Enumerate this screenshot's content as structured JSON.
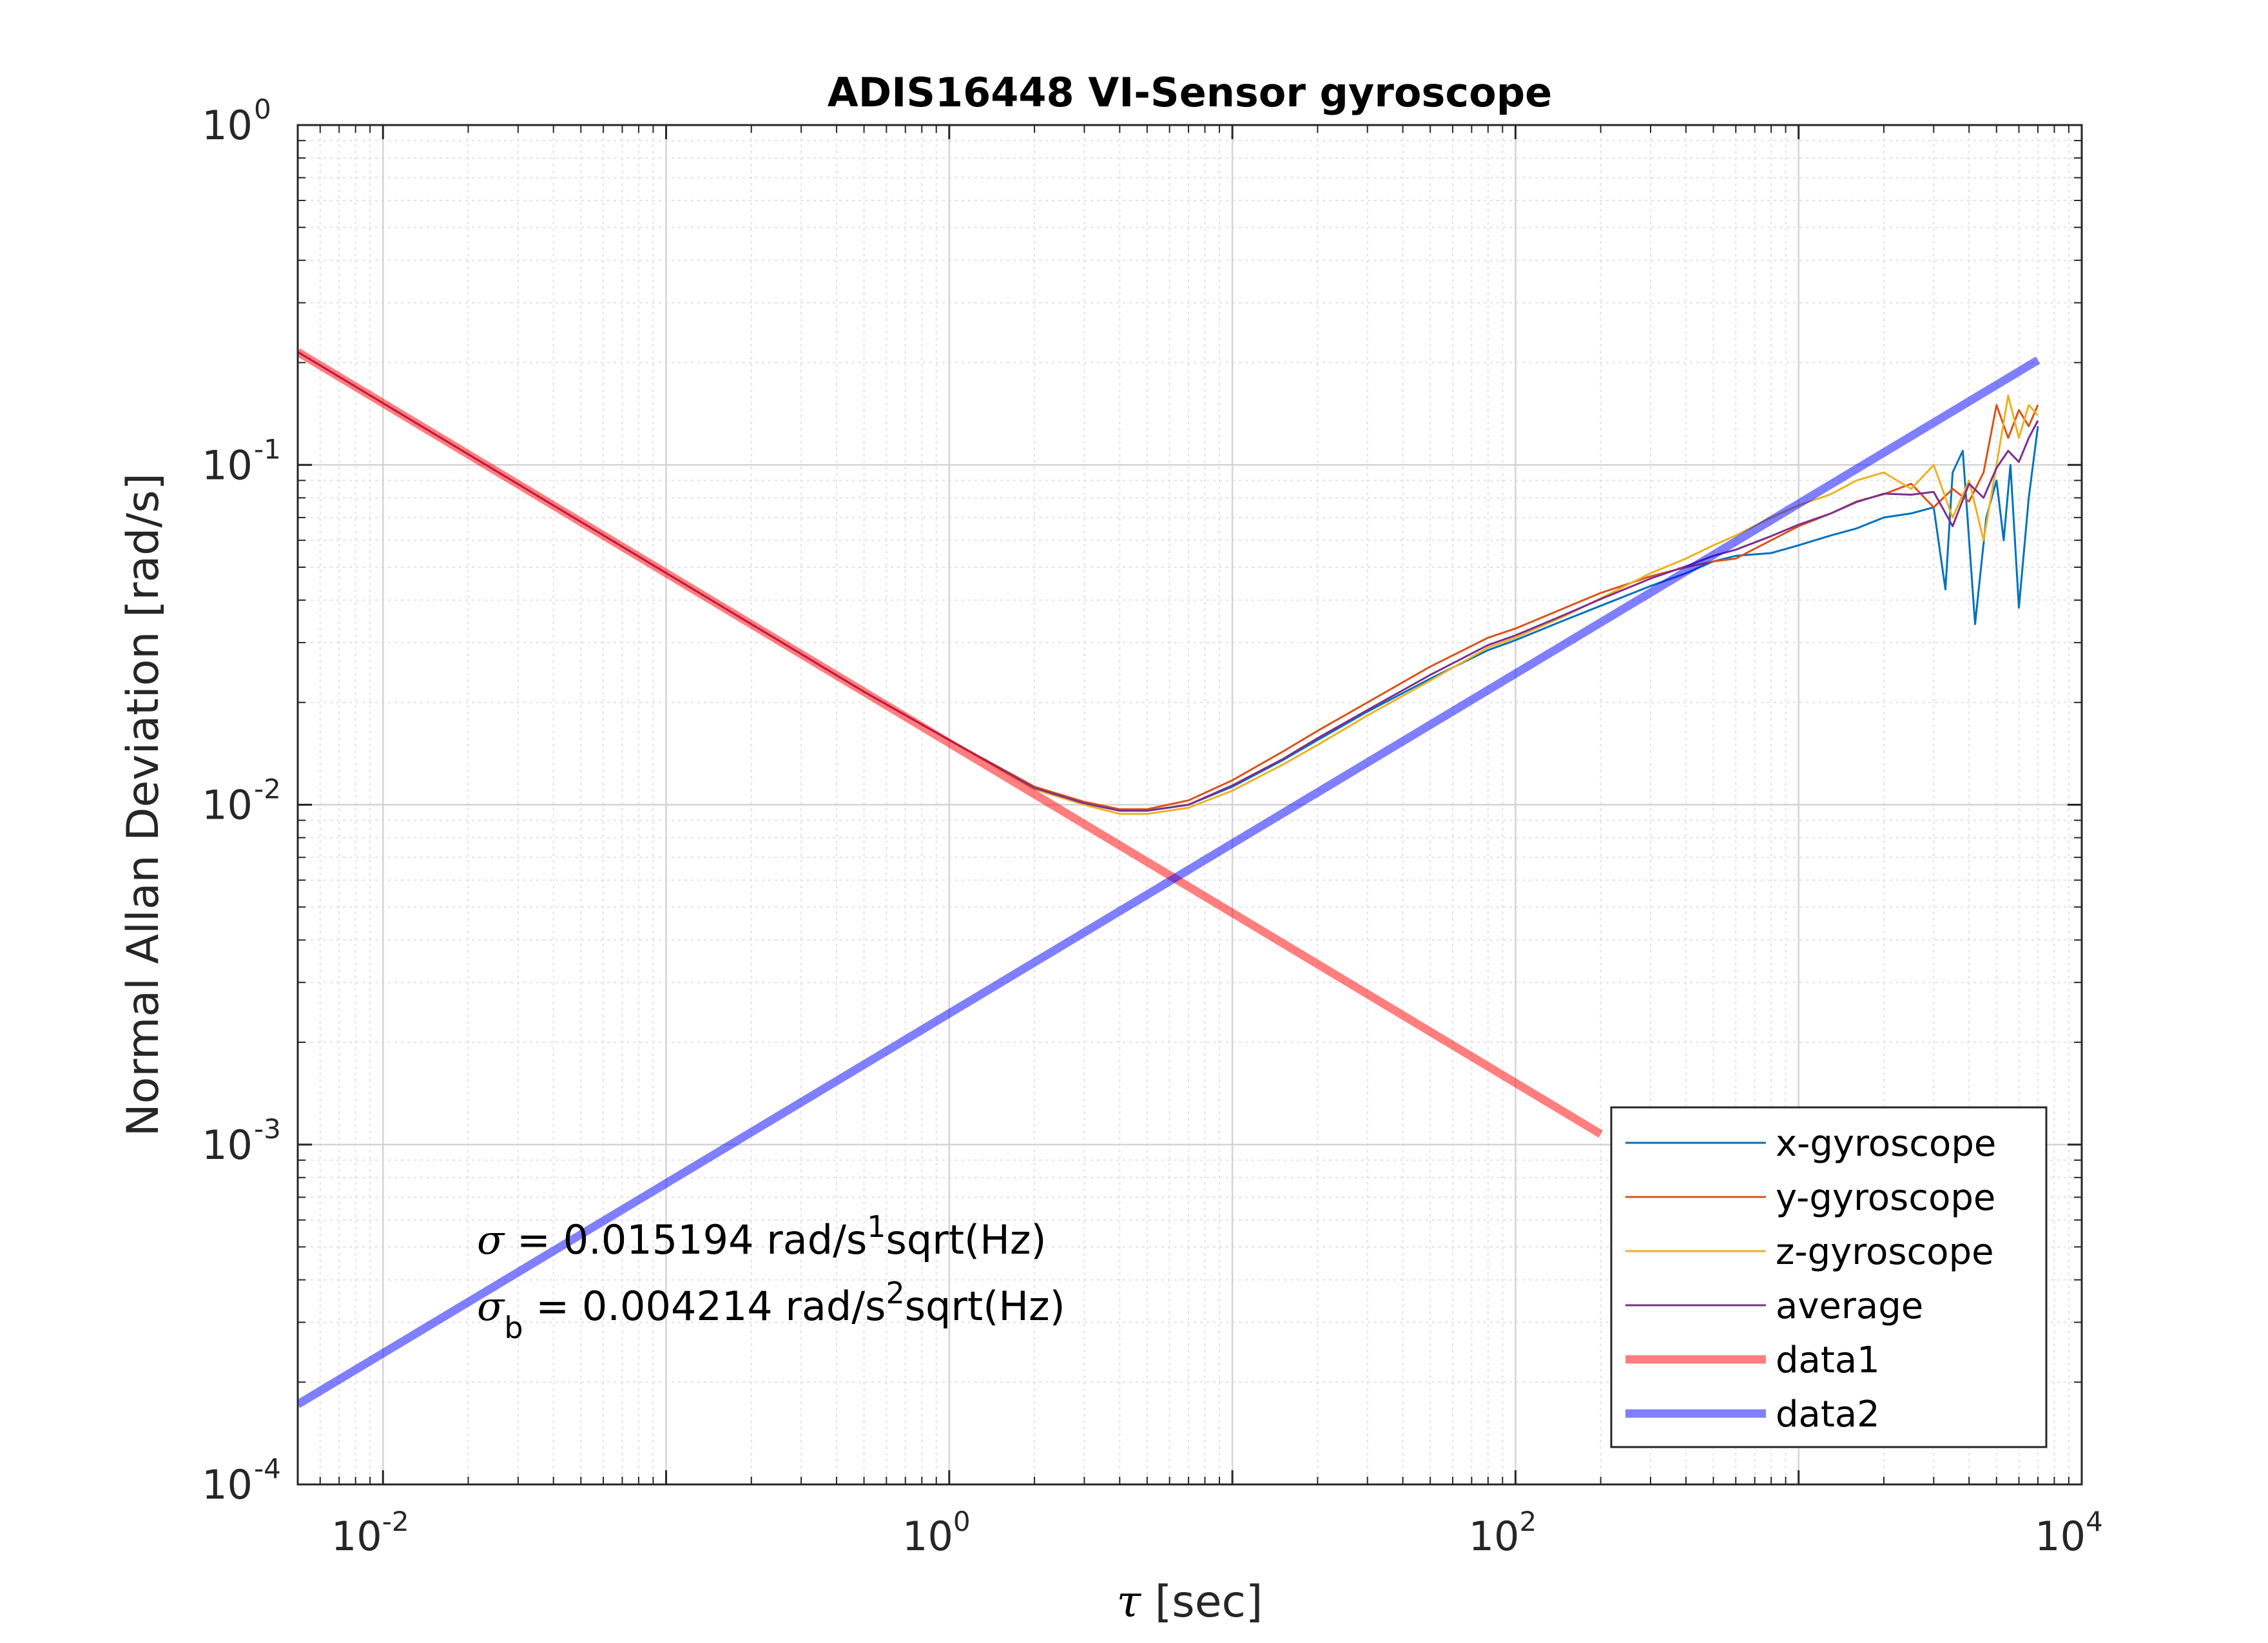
{
  "chart_data": {
    "type": "line",
    "title": "ADIS16448 VI-Sensor gyroscope",
    "xlabel_symbol": "τ",
    "xlabel_text": " [sec]",
    "ylabel": "Normal Allan Deviation [rad/s]",
    "xscale": "log",
    "yscale": "log",
    "xlim": [
      0.005,
      10000
    ],
    "ylim": [
      0.0001,
      1
    ],
    "grid": true,
    "x_ticks": [
      {
        "base": "10",
        "exp": "-2",
        "value": 0.01
      },
      {
        "base": "10",
        "exp": "0",
        "value": 1
      },
      {
        "base": "10",
        "exp": "2",
        "value": 100
      },
      {
        "base": "10",
        "exp": "4",
        "value": 10000
      }
    ],
    "y_ticks": [
      {
        "base": "10",
        "exp": "-4",
        "value": 0.0001
      },
      {
        "base": "10",
        "exp": "-3",
        "value": 0.001
      },
      {
        "base": "10",
        "exp": "-2",
        "value": 0.01
      },
      {
        "base": "10",
        "exp": "-1",
        "value": 0.1
      },
      {
        "base": "10",
        "exp": "0",
        "value": 1
      }
    ],
    "legend_position": "bottom-right",
    "series": [
      {
        "name": "x-gyroscope",
        "color": "#0072BD",
        "width": 3,
        "x": [
          0.005,
          0.01,
          0.05,
          0.2,
          0.5,
          1,
          2,
          3,
          4,
          5,
          7,
          10,
          15,
          20,
          30,
          50,
          80,
          100,
          150,
          200,
          300,
          400,
          500,
          600,
          800,
          1000,
          1300,
          1600,
          2000,
          2500,
          3000,
          3300,
          3500,
          3800,
          4200,
          4600,
          5000,
          5300,
          5600,
          6000,
          6500,
          7000
        ],
        "y": [
          0.215,
          0.152,
          0.068,
          0.034,
          0.0215,
          0.0155,
          0.0112,
          0.0101,
          0.0096,
          0.0096,
          0.01,
          0.0113,
          0.0135,
          0.0155,
          0.0188,
          0.0235,
          0.0285,
          0.0305,
          0.035,
          0.0385,
          0.044,
          0.048,
          0.052,
          0.054,
          0.055,
          0.058,
          0.062,
          0.065,
          0.07,
          0.072,
          0.075,
          0.043,
          0.095,
          0.11,
          0.034,
          0.07,
          0.09,
          0.06,
          0.1,
          0.038,
          0.08,
          0.13
        ]
      },
      {
        "name": "y-gyroscope",
        "color": "#D95319",
        "width": 3,
        "x": [
          0.005,
          0.01,
          0.05,
          0.2,
          0.5,
          1,
          2,
          3,
          4,
          5,
          7,
          10,
          15,
          20,
          30,
          50,
          80,
          100,
          150,
          200,
          300,
          400,
          500,
          600,
          800,
          1000,
          1300,
          1600,
          2000,
          2500,
          3000,
          3500,
          4000,
          4500,
          5000,
          5500,
          6000,
          6500,
          7000
        ],
        "y": [
          0.215,
          0.152,
          0.068,
          0.034,
          0.0215,
          0.0155,
          0.0113,
          0.0102,
          0.0097,
          0.0097,
          0.0103,
          0.0118,
          0.0143,
          0.0165,
          0.02,
          0.0255,
          0.031,
          0.033,
          0.038,
          0.042,
          0.047,
          0.05,
          0.052,
          0.053,
          0.06,
          0.066,
          0.072,
          0.078,
          0.082,
          0.088,
          0.075,
          0.085,
          0.078,
          0.095,
          0.15,
          0.12,
          0.145,
          0.13,
          0.15
        ]
      },
      {
        "name": "z-gyroscope",
        "color": "#EDB120",
        "width": 3,
        "x": [
          0.005,
          0.01,
          0.05,
          0.2,
          0.5,
          1,
          2,
          3,
          4,
          5,
          7,
          10,
          15,
          20,
          30,
          50,
          80,
          100,
          150,
          200,
          300,
          400,
          500,
          600,
          800,
          1000,
          1300,
          1600,
          2000,
          2500,
          3000,
          3500,
          4000,
          4500,
          5000,
          5500,
          6000,
          6500,
          7000
        ],
        "y": [
          0.215,
          0.152,
          0.068,
          0.034,
          0.0215,
          0.0155,
          0.0111,
          0.01,
          0.0094,
          0.0094,
          0.0098,
          0.011,
          0.0131,
          0.015,
          0.0183,
          0.0232,
          0.029,
          0.031,
          0.036,
          0.0405,
          0.048,
          0.053,
          0.058,
          0.062,
          0.07,
          0.076,
          0.082,
          0.09,
          0.095,
          0.085,
          0.1,
          0.07,
          0.09,
          0.06,
          0.1,
          0.16,
          0.12,
          0.15,
          0.14
        ]
      },
      {
        "name": "average",
        "color": "#7E2F8E",
        "width": 3,
        "x": [
          0.005,
          0.01,
          0.05,
          0.2,
          0.5,
          1,
          2,
          3,
          4,
          5,
          7,
          10,
          15,
          20,
          30,
          50,
          80,
          100,
          150,
          200,
          300,
          400,
          500,
          600,
          800,
          1000,
          1300,
          1600,
          2000,
          2500,
          3000,
          3500,
          4000,
          4500,
          5000,
          5500,
          6000,
          6500,
          7000
        ],
        "y": [
          0.215,
          0.152,
          0.068,
          0.034,
          0.0215,
          0.0155,
          0.0112,
          0.0101,
          0.0096,
          0.0096,
          0.01,
          0.0114,
          0.0136,
          0.0157,
          0.019,
          0.0241,
          0.0295,
          0.0315,
          0.0363,
          0.0403,
          0.0463,
          0.0503,
          0.054,
          0.0563,
          0.0617,
          0.0667,
          0.072,
          0.0777,
          0.0823,
          0.0817,
          0.0833,
          0.066,
          0.088,
          0.08,
          0.098,
          0.11,
          0.102,
          0.12,
          0.135
        ]
      },
      {
        "name": "data1",
        "color": "#FF0000",
        "width": 13,
        "opacity": 0.5,
        "x": [
          0.005,
          200
        ],
        "y": [
          0.2149,
          0.001074
        ]
      },
      {
        "name": "data2",
        "color": "#0000FF",
        "width": 13,
        "opacity": 0.5,
        "x": [
          0.005,
          7000
        ],
        "y": [
          0.000172,
          0.2034
        ]
      }
    ],
    "annotations": [
      {
        "symbol": "σ",
        "sub": "",
        "text_before": " = 0.015194 rad/s",
        "sup": "1",
        "text_after": "sqrt(Hz)"
      },
      {
        "symbol": "σ",
        "sub": "b",
        "text_before": " = 0.004214 rad/s",
        "sup": "2",
        "text_after": "sqrt(Hz)"
      }
    ]
  }
}
